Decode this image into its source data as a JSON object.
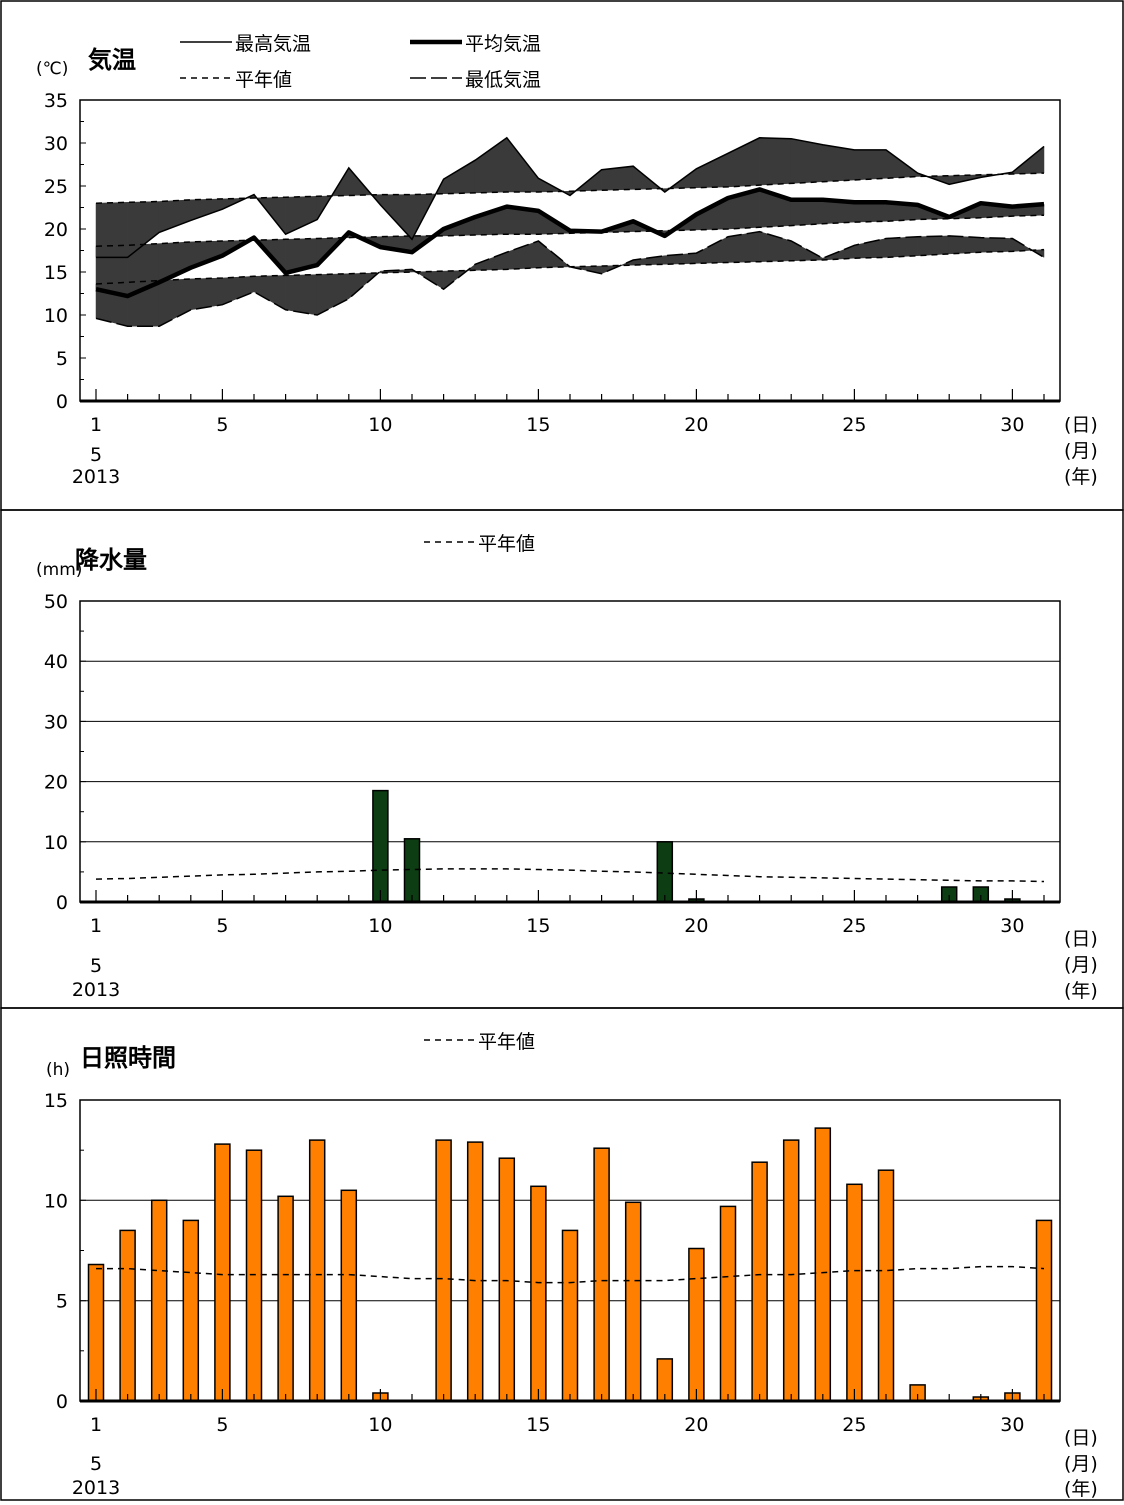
{
  "x_axis": {
    "ticks": [
      "1",
      "5",
      "10",
      "15",
      "20",
      "25",
      "30"
    ],
    "month": "5",
    "year": "2013",
    "unit_day": "(日)",
    "unit_month": "(月)",
    "unit_year": "(年)"
  },
  "chart_data": [
    {
      "type": "line",
      "title": "気温",
      "unit": "(℃)",
      "ylim": [
        0,
        35
      ],
      "yticks": [
        "0",
        "5",
        "10",
        "15",
        "20",
        "25",
        "30",
        "35"
      ],
      "x": [
        1,
        2,
        3,
        4,
        5,
        6,
        7,
        8,
        9,
        10,
        11,
        12,
        13,
        14,
        15,
        16,
        17,
        18,
        19,
        20,
        21,
        22,
        23,
        24,
        25,
        26,
        27,
        28,
        29,
        30,
        31
      ],
      "legend": {
        "max": "最高気温",
        "avg": "平均気温",
        "normal": "平年値",
        "min": "最低気温"
      },
      "series": [
        {
          "name": "最高気温",
          "key": "max",
          "values": [
            16.7,
            16.7,
            19.6,
            21.0,
            22.3,
            24.0,
            19.4,
            21.1,
            27.1,
            22.8,
            18.8,
            25.8,
            28.0,
            30.6,
            25.9,
            23.9,
            26.9,
            27.3,
            24.3,
            27.0,
            28.8,
            30.6,
            30.5,
            29.8,
            29.2,
            29.2,
            26.5,
            25.2,
            26.0,
            26.6,
            29.6
          ]
        },
        {
          "name": "平均気温",
          "key": "avg",
          "values": [
            13.0,
            12.2,
            13.8,
            15.5,
            16.9,
            19.0,
            14.9,
            15.8,
            19.6,
            17.9,
            17.3,
            20.0,
            21.4,
            22.6,
            22.1,
            19.8,
            19.7,
            20.9,
            19.2,
            21.7,
            23.6,
            24.6,
            23.4,
            23.4,
            23.1,
            23.1,
            22.8,
            21.4,
            23.0,
            22.6,
            22.9
          ]
        },
        {
          "name": "最低気温",
          "key": "min",
          "values": [
            9.6,
            8.7,
            8.7,
            10.6,
            11.2,
            12.7,
            10.6,
            10.0,
            11.9,
            15.1,
            15.3,
            13.0,
            15.9,
            17.3,
            18.6,
            15.6,
            14.8,
            16.4,
            16.9,
            17.2,
            19.1,
            19.7,
            18.6,
            16.6,
            18.1,
            18.9,
            19.1,
            19.2,
            19.0,
            18.9,
            16.7
          ]
        },
        {
          "name": "平年値 (最高)",
          "key": "normal_max",
          "values": [
            23.0,
            23.1,
            23.2,
            23.4,
            23.5,
            23.6,
            23.7,
            23.8,
            23.9,
            24.0,
            24.0,
            24.1,
            24.2,
            24.3,
            24.3,
            24.4,
            24.5,
            24.6,
            24.7,
            24.8,
            24.9,
            25.1,
            25.3,
            25.5,
            25.7,
            25.9,
            26.1,
            26.2,
            26.3,
            26.4,
            26.5
          ]
        },
        {
          "name": "平年値 (平均)",
          "key": "normal_avg",
          "values": [
            18.0,
            18.1,
            18.3,
            18.5,
            18.6,
            18.7,
            18.8,
            18.9,
            19.0,
            19.1,
            19.2,
            19.2,
            19.3,
            19.4,
            19.4,
            19.5,
            19.6,
            19.7,
            19.8,
            19.9,
            20.0,
            20.2,
            20.4,
            20.6,
            20.8,
            20.9,
            21.1,
            21.2,
            21.3,
            21.5,
            21.6
          ]
        },
        {
          "name": "平年値 (最低)",
          "key": "normal_min",
          "values": [
            13.6,
            13.8,
            14.0,
            14.2,
            14.3,
            14.5,
            14.6,
            14.7,
            14.8,
            14.9,
            15.0,
            15.1,
            15.2,
            15.3,
            15.5,
            15.6,
            15.7,
            15.8,
            15.9,
            16.0,
            16.1,
            16.2,
            16.3,
            16.4,
            16.6,
            16.7,
            16.9,
            17.1,
            17.3,
            17.4,
            17.6
          ]
        }
      ]
    },
    {
      "type": "bar",
      "title": "降水量",
      "unit": "(mm)",
      "ylim": [
        0,
        50
      ],
      "yticks": [
        "0",
        "10",
        "20",
        "30",
        "40",
        "50"
      ],
      "legend_normal": "平年値",
      "x": [
        1,
        2,
        3,
        4,
        5,
        6,
        7,
        8,
        9,
        10,
        11,
        12,
        13,
        14,
        15,
        16,
        17,
        18,
        19,
        20,
        21,
        22,
        23,
        24,
        25,
        26,
        27,
        28,
        29,
        30,
        31
      ],
      "values": [
        0,
        0,
        0,
        0,
        0,
        0,
        0,
        0,
        0,
        18.5,
        10.5,
        0,
        0,
        0,
        0,
        0,
        0,
        0,
        10.0,
        0.5,
        0,
        0,
        0,
        0,
        0,
        0,
        0,
        2.5,
        2.5,
        0.5,
        0
      ],
      "normal": [
        3.8,
        3.9,
        4.1,
        4.3,
        4.5,
        4.6,
        4.8,
        5.0,
        5.1,
        5.3,
        5.4,
        5.5,
        5.5,
        5.5,
        5.4,
        5.3,
        5.1,
        5.0,
        4.8,
        4.6,
        4.4,
        4.2,
        4.1,
        4.0,
        3.9,
        3.8,
        3.7,
        3.6,
        3.5,
        3.5,
        3.4
      ],
      "bar_color": "#0d3d12"
    },
    {
      "type": "bar",
      "title": "日照時間",
      "unit": "(h)",
      "ylim": [
        0,
        15
      ],
      "yticks": [
        "0",
        "5",
        "10",
        "15"
      ],
      "legend_normal": "平年値",
      "x": [
        1,
        2,
        3,
        4,
        5,
        6,
        7,
        8,
        9,
        10,
        11,
        12,
        13,
        14,
        15,
        16,
        17,
        18,
        19,
        20,
        21,
        22,
        23,
        24,
        25,
        26,
        27,
        28,
        29,
        30,
        31
      ],
      "values": [
        6.8,
        8.5,
        10.0,
        9.0,
        12.8,
        12.5,
        10.2,
        13.0,
        10.5,
        0.4,
        0,
        13.0,
        12.9,
        12.1,
        10.7,
        8.5,
        12.6,
        9.9,
        2.1,
        7.6,
        9.7,
        11.9,
        13.0,
        13.6,
        10.8,
        11.5,
        0.8,
        0,
        0.2,
        0.4,
        9.0
      ],
      "normal": [
        6.6,
        6.6,
        6.5,
        6.4,
        6.3,
        6.3,
        6.3,
        6.3,
        6.3,
        6.2,
        6.1,
        6.1,
        6.0,
        6.0,
        5.9,
        5.9,
        6.0,
        6.0,
        6.0,
        6.1,
        6.2,
        6.3,
        6.3,
        6.4,
        6.5,
        6.5,
        6.6,
        6.6,
        6.7,
        6.7,
        6.6
      ],
      "bar_color": "#ff8000"
    }
  ]
}
